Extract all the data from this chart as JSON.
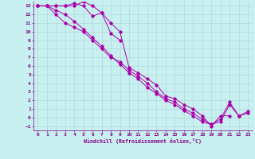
{
  "xlabel": "Windchill (Refroidissement éolien,°C)",
  "bg_color": "#c8f0f0",
  "grid_color": "#b0d8d8",
  "line_color": "#aa00aa",
  "xlim": [
    -0.5,
    23.5
  ],
  "ylim": [
    -1.5,
    13.5
  ],
  "xticks": [
    0,
    1,
    2,
    3,
    4,
    5,
    6,
    7,
    8,
    9,
    10,
    11,
    12,
    13,
    14,
    15,
    16,
    17,
    18,
    19,
    20,
    21,
    22,
    23
  ],
  "yticks": [
    -1,
    0,
    1,
    2,
    3,
    4,
    5,
    6,
    7,
    8,
    9,
    10,
    11,
    12,
    13
  ],
  "line1_x": [
    0,
    1,
    2,
    3,
    4,
    5,
    6,
    7,
    8,
    9
  ],
  "line1_y": [
    13,
    13,
    13,
    13,
    13,
    13.5,
    13,
    12.2,
    9.8,
    9.0
  ],
  "line2_x": [
    0,
    2,
    3,
    4,
    5,
    6,
    7,
    8,
    9,
    10,
    11,
    12,
    13,
    14,
    15,
    16,
    17,
    18,
    19,
    20,
    21
  ],
  "line2_y": [
    13,
    13,
    13,
    13.3,
    13,
    11.8,
    12.2,
    11,
    10,
    5.8,
    5.2,
    4.5,
    3.8,
    2.5,
    2.2,
    1.5,
    1.0,
    0.2,
    -1.0,
    0.2,
    0.2
  ],
  "line3_x": [
    0,
    1,
    2,
    3,
    4,
    5,
    6,
    7,
    8,
    9,
    10,
    11,
    12,
    13,
    14,
    15,
    16,
    17,
    18,
    19,
    20,
    21,
    22,
    23
  ],
  "line3_y": [
    13,
    13,
    12,
    11,
    10.5,
    10,
    9,
    8,
    7,
    6.5,
    5.5,
    4.8,
    4.0,
    3.0,
    2.2,
    1.8,
    1.0,
    0.5,
    -0.2,
    -0.8,
    -0.5,
    1.5,
    0.2,
    0.5
  ],
  "line4_x": [
    0,
    1,
    2,
    3,
    4,
    5,
    6,
    7,
    8,
    9,
    10,
    11,
    12,
    13,
    14,
    15,
    16,
    17,
    18,
    19,
    20,
    21,
    22,
    23
  ],
  "line4_y": [
    13,
    13,
    12.5,
    12,
    11.2,
    10.3,
    9.3,
    8.3,
    7.2,
    6.2,
    5.2,
    4.5,
    3.5,
    2.8,
    2.0,
    1.5,
    0.8,
    0.2,
    -0.5,
    -0.8,
    -0.2,
    1.8,
    0.2,
    0.7
  ]
}
